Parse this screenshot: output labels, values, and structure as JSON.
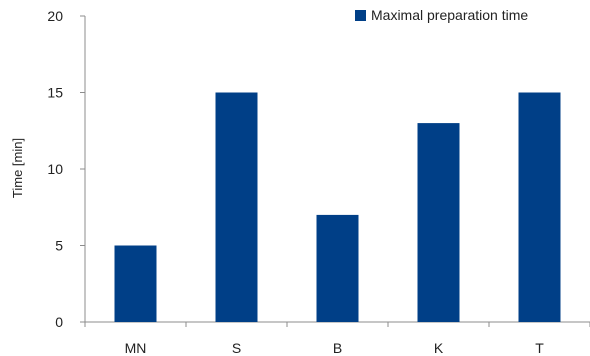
{
  "chart_data": {
    "type": "bar",
    "categories": [
      "MN",
      "S",
      "B",
      "K",
      "T"
    ],
    "series": [
      {
        "name": "Maximal preparation time",
        "values": [
          5,
          15,
          7,
          13,
          15
        ]
      }
    ],
    "title": "",
    "xlabel": "",
    "ylabel": "Time [min]",
    "ylim": [
      0,
      20
    ],
    "yticks": [
      0,
      5,
      10,
      15,
      20
    ],
    "grid": false,
    "legend_position": "top-right",
    "bar_color": "#003f87"
  }
}
